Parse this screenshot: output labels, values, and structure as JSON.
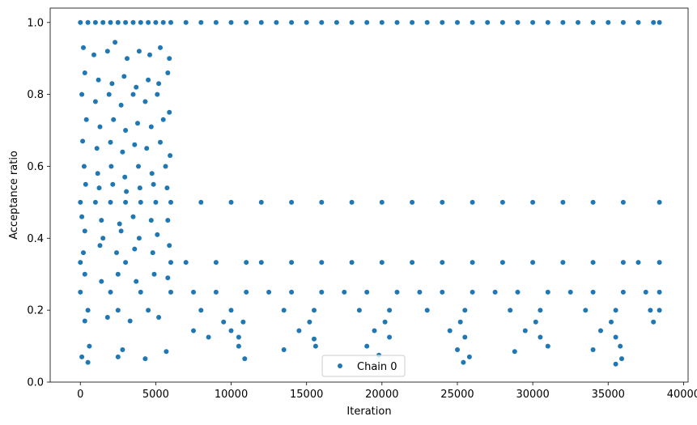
{
  "chart_data": {
    "type": "scatter",
    "title": "",
    "xlabel": "Iteration",
    "ylabel": "Acceptance ratio",
    "xlim": [
      -2000,
      40300
    ],
    "ylim": [
      0.0,
      1.04
    ],
    "xticks": [
      0,
      5000,
      10000,
      15000,
      20000,
      25000,
      30000,
      35000,
      40000
    ],
    "yticks": [
      0.0,
      0.2,
      0.4,
      0.6,
      0.8,
      1.0
    ],
    "xtick_labels": [
      "0",
      "5000",
      "10000",
      "15000",
      "20000",
      "25000",
      "30000",
      "35000",
      "40000"
    ],
    "ytick_labels": [
      "0.0",
      "0.2",
      "0.4",
      "0.6",
      "0.8",
      "1.0"
    ],
    "grid": false,
    "legend": {
      "placement": "lower center",
      "entries": [
        "Chain 0"
      ]
    },
    "color": "#1f77b4",
    "series": [
      {
        "name": "Chain 0",
        "marker": "o",
        "points": [
          [
            0,
            1.0
          ],
          [
            500,
            1.0
          ],
          [
            1000,
            1.0
          ],
          [
            1500,
            1.0
          ],
          [
            2000,
            1.0
          ],
          [
            2500,
            1.0
          ],
          [
            3000,
            1.0
          ],
          [
            3500,
            1.0
          ],
          [
            4000,
            1.0
          ],
          [
            4500,
            1.0
          ],
          [
            5000,
            1.0
          ],
          [
            5500,
            1.0
          ],
          [
            6000,
            1.0
          ],
          [
            7000,
            1.0
          ],
          [
            8000,
            1.0
          ],
          [
            9000,
            1.0
          ],
          [
            10000,
            1.0
          ],
          [
            11000,
            1.0
          ],
          [
            12000,
            1.0
          ],
          [
            13000,
            1.0
          ],
          [
            14000,
            1.0
          ],
          [
            15000,
            1.0
          ],
          [
            16000,
            1.0
          ],
          [
            17000,
            1.0
          ],
          [
            18000,
            1.0
          ],
          [
            19000,
            1.0
          ],
          [
            20000,
            1.0
          ],
          [
            21000,
            1.0
          ],
          [
            22000,
            1.0
          ],
          [
            23000,
            1.0
          ],
          [
            24000,
            1.0
          ],
          [
            25000,
            1.0
          ],
          [
            26000,
            1.0
          ],
          [
            27000,
            1.0
          ],
          [
            28000,
            1.0
          ],
          [
            29000,
            1.0
          ],
          [
            30000,
            1.0
          ],
          [
            31000,
            1.0
          ],
          [
            32000,
            1.0
          ],
          [
            33000,
            1.0
          ],
          [
            34000,
            1.0
          ],
          [
            35000,
            1.0
          ],
          [
            36000,
            1.0
          ],
          [
            37000,
            1.0
          ],
          [
            38000,
            1.0
          ],
          [
            38400,
            1.0
          ],
          [
            200,
            0.93
          ],
          [
            900,
            0.91
          ],
          [
            1800,
            0.92
          ],
          [
            2300,
            0.945
          ],
          [
            3100,
            0.9
          ],
          [
            3900,
            0.92
          ],
          [
            4600,
            0.91
          ],
          [
            5300,
            0.93
          ],
          [
            5900,
            0.9
          ],
          [
            300,
            0.86
          ],
          [
            1200,
            0.84
          ],
          [
            2100,
            0.83
          ],
          [
            2900,
            0.85
          ],
          [
            3700,
            0.82
          ],
          [
            4500,
            0.84
          ],
          [
            5200,
            0.83
          ],
          [
            5800,
            0.86
          ],
          [
            100,
            0.8
          ],
          [
            1000,
            0.78
          ],
          [
            1900,
            0.8
          ],
          [
            2700,
            0.77
          ],
          [
            3500,
            0.8
          ],
          [
            4300,
            0.78
          ],
          [
            5100,
            0.8
          ],
          [
            5900,
            0.75
          ],
          [
            400,
            0.73
          ],
          [
            1300,
            0.71
          ],
          [
            2200,
            0.73
          ],
          [
            3000,
            0.7
          ],
          [
            3800,
            0.72
          ],
          [
            4700,
            0.71
          ],
          [
            5500,
            0.73
          ],
          [
            150,
            0.67
          ],
          [
            1100,
            0.65
          ],
          [
            2000,
            0.667
          ],
          [
            2800,
            0.64
          ],
          [
            3600,
            0.66
          ],
          [
            4400,
            0.65
          ],
          [
            5300,
            0.667
          ],
          [
            5950,
            0.63
          ],
          [
            250,
            0.6
          ],
          [
            1150,
            0.58
          ],
          [
            2050,
            0.6
          ],
          [
            2950,
            0.57
          ],
          [
            3850,
            0.6
          ],
          [
            4750,
            0.58
          ],
          [
            5650,
            0.6
          ],
          [
            350,
            0.55
          ],
          [
            1250,
            0.54
          ],
          [
            2150,
            0.55
          ],
          [
            3050,
            0.53
          ],
          [
            3950,
            0.54
          ],
          [
            4850,
            0.55
          ],
          [
            5750,
            0.54
          ],
          [
            0,
            0.5
          ],
          [
            1000,
            0.5
          ],
          [
            2000,
            0.5
          ],
          [
            3000,
            0.5
          ],
          [
            4000,
            0.5
          ],
          [
            5000,
            0.5
          ],
          [
            6000,
            0.5
          ],
          [
            8000,
            0.5
          ],
          [
            10000,
            0.5
          ],
          [
            12000,
            0.5
          ],
          [
            14000,
            0.5
          ],
          [
            16000,
            0.5
          ],
          [
            18000,
            0.5
          ],
          [
            20000,
            0.5
          ],
          [
            22000,
            0.5
          ],
          [
            24000,
            0.5
          ],
          [
            26000,
            0.5
          ],
          [
            28000,
            0.5
          ],
          [
            30000,
            0.5
          ],
          [
            32000,
            0.5
          ],
          [
            34000,
            0.5
          ],
          [
            36000,
            0.5
          ],
          [
            38400,
            0.5
          ],
          [
            100,
            0.46
          ],
          [
            1400,
            0.45
          ],
          [
            2600,
            0.44
          ],
          [
            3500,
            0.46
          ],
          [
            4700,
            0.45
          ],
          [
            5800,
            0.45
          ],
          [
            300,
            0.42
          ],
          [
            1500,
            0.4
          ],
          [
            2700,
            0.42
          ],
          [
            3900,
            0.4
          ],
          [
            5100,
            0.41
          ],
          [
            200,
            0.36
          ],
          [
            1300,
            0.38
          ],
          [
            2400,
            0.36
          ],
          [
            3600,
            0.37
          ],
          [
            4800,
            0.36
          ],
          [
            5900,
            0.38
          ],
          [
            0,
            0.333
          ],
          [
            3000,
            0.333
          ],
          [
            6000,
            0.333
          ],
          [
            7000,
            0.333
          ],
          [
            9000,
            0.333
          ],
          [
            11000,
            0.333
          ],
          [
            12000,
            0.333
          ],
          [
            14000,
            0.333
          ],
          [
            16000,
            0.333
          ],
          [
            18000,
            0.333
          ],
          [
            20000,
            0.333
          ],
          [
            22000,
            0.333
          ],
          [
            24000,
            0.333
          ],
          [
            26000,
            0.333
          ],
          [
            28000,
            0.333
          ],
          [
            30000,
            0.333
          ],
          [
            32000,
            0.333
          ],
          [
            34000,
            0.333
          ],
          [
            36000,
            0.333
          ],
          [
            37000,
            0.333
          ],
          [
            38400,
            0.333
          ],
          [
            300,
            0.3
          ],
          [
            1400,
            0.28
          ],
          [
            2500,
            0.3
          ],
          [
            3700,
            0.28
          ],
          [
            4900,
            0.3
          ],
          [
            5800,
            0.29
          ],
          [
            0,
            0.25
          ],
          [
            2000,
            0.25
          ],
          [
            4000,
            0.25
          ],
          [
            6000,
            0.25
          ],
          [
            7500,
            0.25
          ],
          [
            9000,
            0.25
          ],
          [
            11000,
            0.25
          ],
          [
            12500,
            0.25
          ],
          [
            14000,
            0.25
          ],
          [
            16000,
            0.25
          ],
          [
            17500,
            0.25
          ],
          [
            19000,
            0.25
          ],
          [
            21000,
            0.25
          ],
          [
            22500,
            0.25
          ],
          [
            24000,
            0.25
          ],
          [
            26000,
            0.25
          ],
          [
            27500,
            0.25
          ],
          [
            29000,
            0.25
          ],
          [
            31000,
            0.25
          ],
          [
            32500,
            0.25
          ],
          [
            34000,
            0.25
          ],
          [
            36000,
            0.25
          ],
          [
            37500,
            0.25
          ],
          [
            38400,
            0.25
          ],
          [
            500,
            0.2
          ],
          [
            2500,
            0.2
          ],
          [
            4500,
            0.2
          ],
          [
            8000,
            0.2
          ],
          [
            10000,
            0.2
          ],
          [
            13500,
            0.2
          ],
          [
            15500,
            0.2
          ],
          [
            18500,
            0.2
          ],
          [
            20500,
            0.2
          ],
          [
            23000,
            0.2
          ],
          [
            25500,
            0.2
          ],
          [
            28500,
            0.2
          ],
          [
            30500,
            0.2
          ],
          [
            33500,
            0.2
          ],
          [
            35500,
            0.2
          ],
          [
            37800,
            0.2
          ],
          [
            38400,
            0.2
          ],
          [
            300,
            0.17
          ],
          [
            1800,
            0.18
          ],
          [
            3300,
            0.17
          ],
          [
            5200,
            0.18
          ],
          [
            9500,
            0.167
          ],
          [
            10800,
            0.167
          ],
          [
            15200,
            0.167
          ],
          [
            20200,
            0.167
          ],
          [
            25200,
            0.167
          ],
          [
            30200,
            0.167
          ],
          [
            35200,
            0.167
          ],
          [
            38000,
            0.167
          ],
          [
            7500,
            0.143
          ],
          [
            10000,
            0.143
          ],
          [
            14500,
            0.143
          ],
          [
            19500,
            0.143
          ],
          [
            24500,
            0.143
          ],
          [
            29500,
            0.143
          ],
          [
            34500,
            0.143
          ],
          [
            8500,
            0.125
          ],
          [
            10500,
            0.125
          ],
          [
            15500,
            0.12
          ],
          [
            20500,
            0.125
          ],
          [
            25500,
            0.125
          ],
          [
            30500,
            0.125
          ],
          [
            35500,
            0.125
          ],
          [
            600,
            0.1
          ],
          [
            2800,
            0.09
          ],
          [
            5700,
            0.085
          ],
          [
            10500,
            0.1
          ],
          [
            13500,
            0.09
          ],
          [
            15600,
            0.1
          ],
          [
            19000,
            0.1
          ],
          [
            25000,
            0.09
          ],
          [
            28800,
            0.085
          ],
          [
            31000,
            0.1
          ],
          [
            34000,
            0.09
          ],
          [
            35800,
            0.1
          ],
          [
            100,
            0.07
          ],
          [
            500,
            0.055
          ],
          [
            2500,
            0.07
          ],
          [
            4300,
            0.065
          ],
          [
            10900,
            0.065
          ],
          [
            19800,
            0.075
          ],
          [
            25400,
            0.055
          ],
          [
            35500,
            0.05
          ],
          [
            25800,
            0.07
          ],
          [
            35900,
            0.065
          ]
        ]
      }
    ]
  }
}
